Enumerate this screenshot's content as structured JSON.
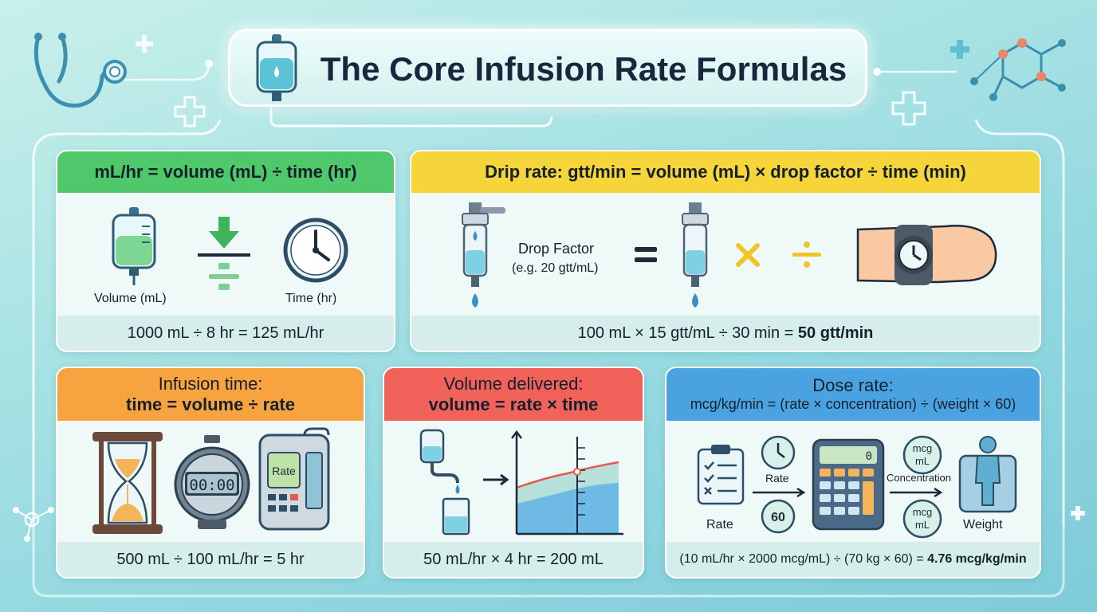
{
  "title": "The Core Infusion Rate Formulas",
  "panels": {
    "ml_hr": {
      "formula": "mL/hr = volume (mL) ÷ time (hr)",
      "volume_label": "Volume (mL)",
      "time_label": "Time (hr)",
      "example": "1000 mL ÷ 8 hr = 125 mL/hr",
      "header_color": "#4ec86a"
    },
    "drip": {
      "formula": "Drip rate: gtt/min =  volume (mL) × drop factor ÷ time (min)",
      "drop_factor_label": "Drop Factor",
      "drop_factor_example": "(e.g. 20 gtt/mL)",
      "example_prefix": "100 mL × 15 gtt/mL ÷ 30 min = ",
      "example_result": "50 gtt/min",
      "header_color": "#f5d53a"
    },
    "infusion_time": {
      "title": "Infusion time:",
      "formula": "time = volume ÷ rate",
      "stopwatch_display": "00:00",
      "pump_display": "Rate",
      "example": "500 mL ÷ 100 mL/hr = 5 hr",
      "header_color": "#f7a440"
    },
    "volume_delivered": {
      "title": "Volume delivered:",
      "formula": "volume = rate × time",
      "example": "50 mL/hr × 4 hr = 200 mL",
      "header_color": "#f0625a"
    },
    "dose_rate": {
      "title": "Dose rate:",
      "formula": "mcg/kg/min = (rate × concentration) ÷ (weight × 60)",
      "rate_label": "Rate",
      "rate_small_label": "Rate",
      "sixty_label": "60",
      "calc_display": "0",
      "conc_top": "mcg\nmL",
      "conc_label": "Concentration",
      "weight_label": "Weight",
      "example_prefix": "(10 mL/hr × 2000 mcg/mL) ÷ (70 kg × 60) = ",
      "example_result": "4.76 mcg/kg/min",
      "header_color": "#4aa3e0"
    }
  },
  "icons": {
    "stethoscope": "stethoscope-icon",
    "iv_bag": "iv-bag-icon",
    "molecule": "molecule-icon",
    "plus": "plus-icon"
  }
}
